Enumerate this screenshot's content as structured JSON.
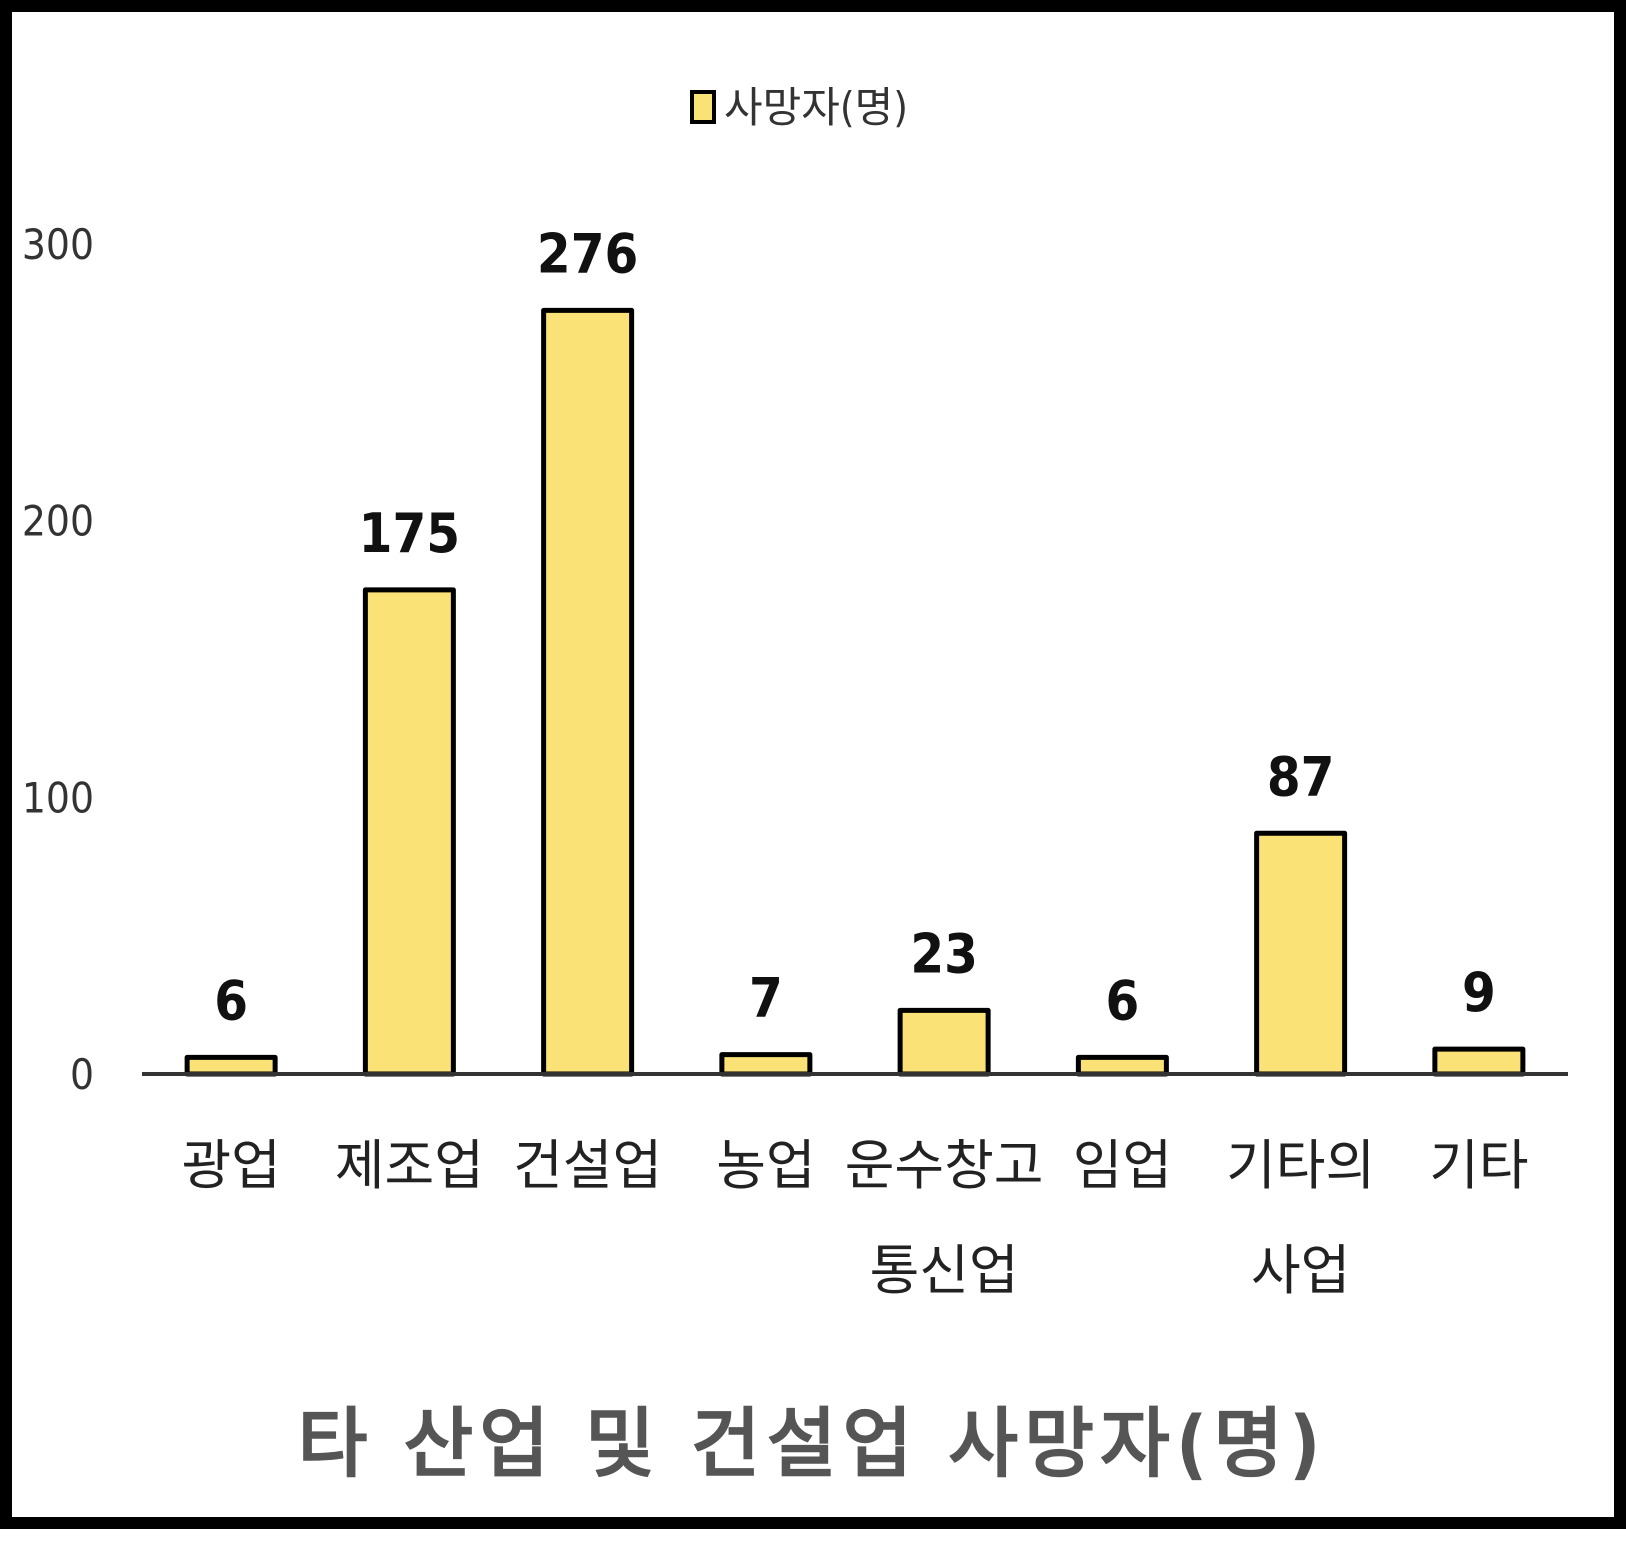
{
  "colors": {
    "bar_fill": "#FBE276",
    "bar_stroke": "#000000",
    "axis": "#333333",
    "frame": "#000000"
  },
  "chart_data": {
    "type": "bar",
    "title": "타 산업 및 건설업 사망자(명)",
    "legend": {
      "position": "top-center",
      "entries": [
        "사망자(명)"
      ]
    },
    "categories": [
      [
        "광업"
      ],
      [
        "제조업"
      ],
      [
        "건설업"
      ],
      [
        "농업"
      ],
      [
        "운수창고",
        "통신업"
      ],
      [
        "임업"
      ],
      [
        "기타의",
        "사업"
      ],
      [
        "기타"
      ]
    ],
    "series": [
      {
        "name": "사망자(명)",
        "values": [
          6,
          175,
          276,
          7,
          23,
          6,
          87,
          9
        ]
      }
    ],
    "yticks": [
      0,
      100,
      200,
      300
    ],
    "ylim": [
      0,
      300
    ],
    "grid": false,
    "data_labels": true
  }
}
